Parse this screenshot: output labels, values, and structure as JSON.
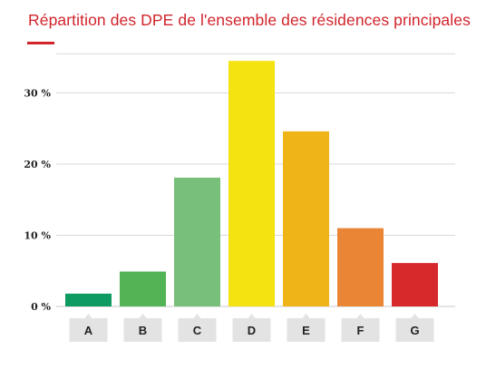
{
  "title": "Répartition des DPE de l'ensemble des résidences principales",
  "colors": {
    "accent": "#d1242b",
    "grid": "#d9d9d9",
    "tab": "#e3e3e3"
  },
  "chart_data": {
    "type": "bar",
    "title": "Répartition des DPE de l'ensemble des résidences principales",
    "xlabel": "",
    "ylabel": "",
    "categories": [
      "A",
      "B",
      "C",
      "D",
      "E",
      "F",
      "G"
    ],
    "values": [
      1.8,
      4.9,
      18.1,
      34.5,
      24.6,
      11.0,
      6.1
    ],
    "colors": [
      "#0d9b62",
      "#53b456",
      "#78c07a",
      "#f4e310",
      "#efb418",
      "#eb8536",
      "#d7282b"
    ],
    "yticks": [
      0,
      10,
      20,
      30
    ],
    "ytick_labels": [
      "0 %",
      "10 %",
      "20 %",
      "30 %"
    ],
    "ylim": [
      0,
      35.5
    ],
    "grid": true,
    "legend": "none"
  }
}
